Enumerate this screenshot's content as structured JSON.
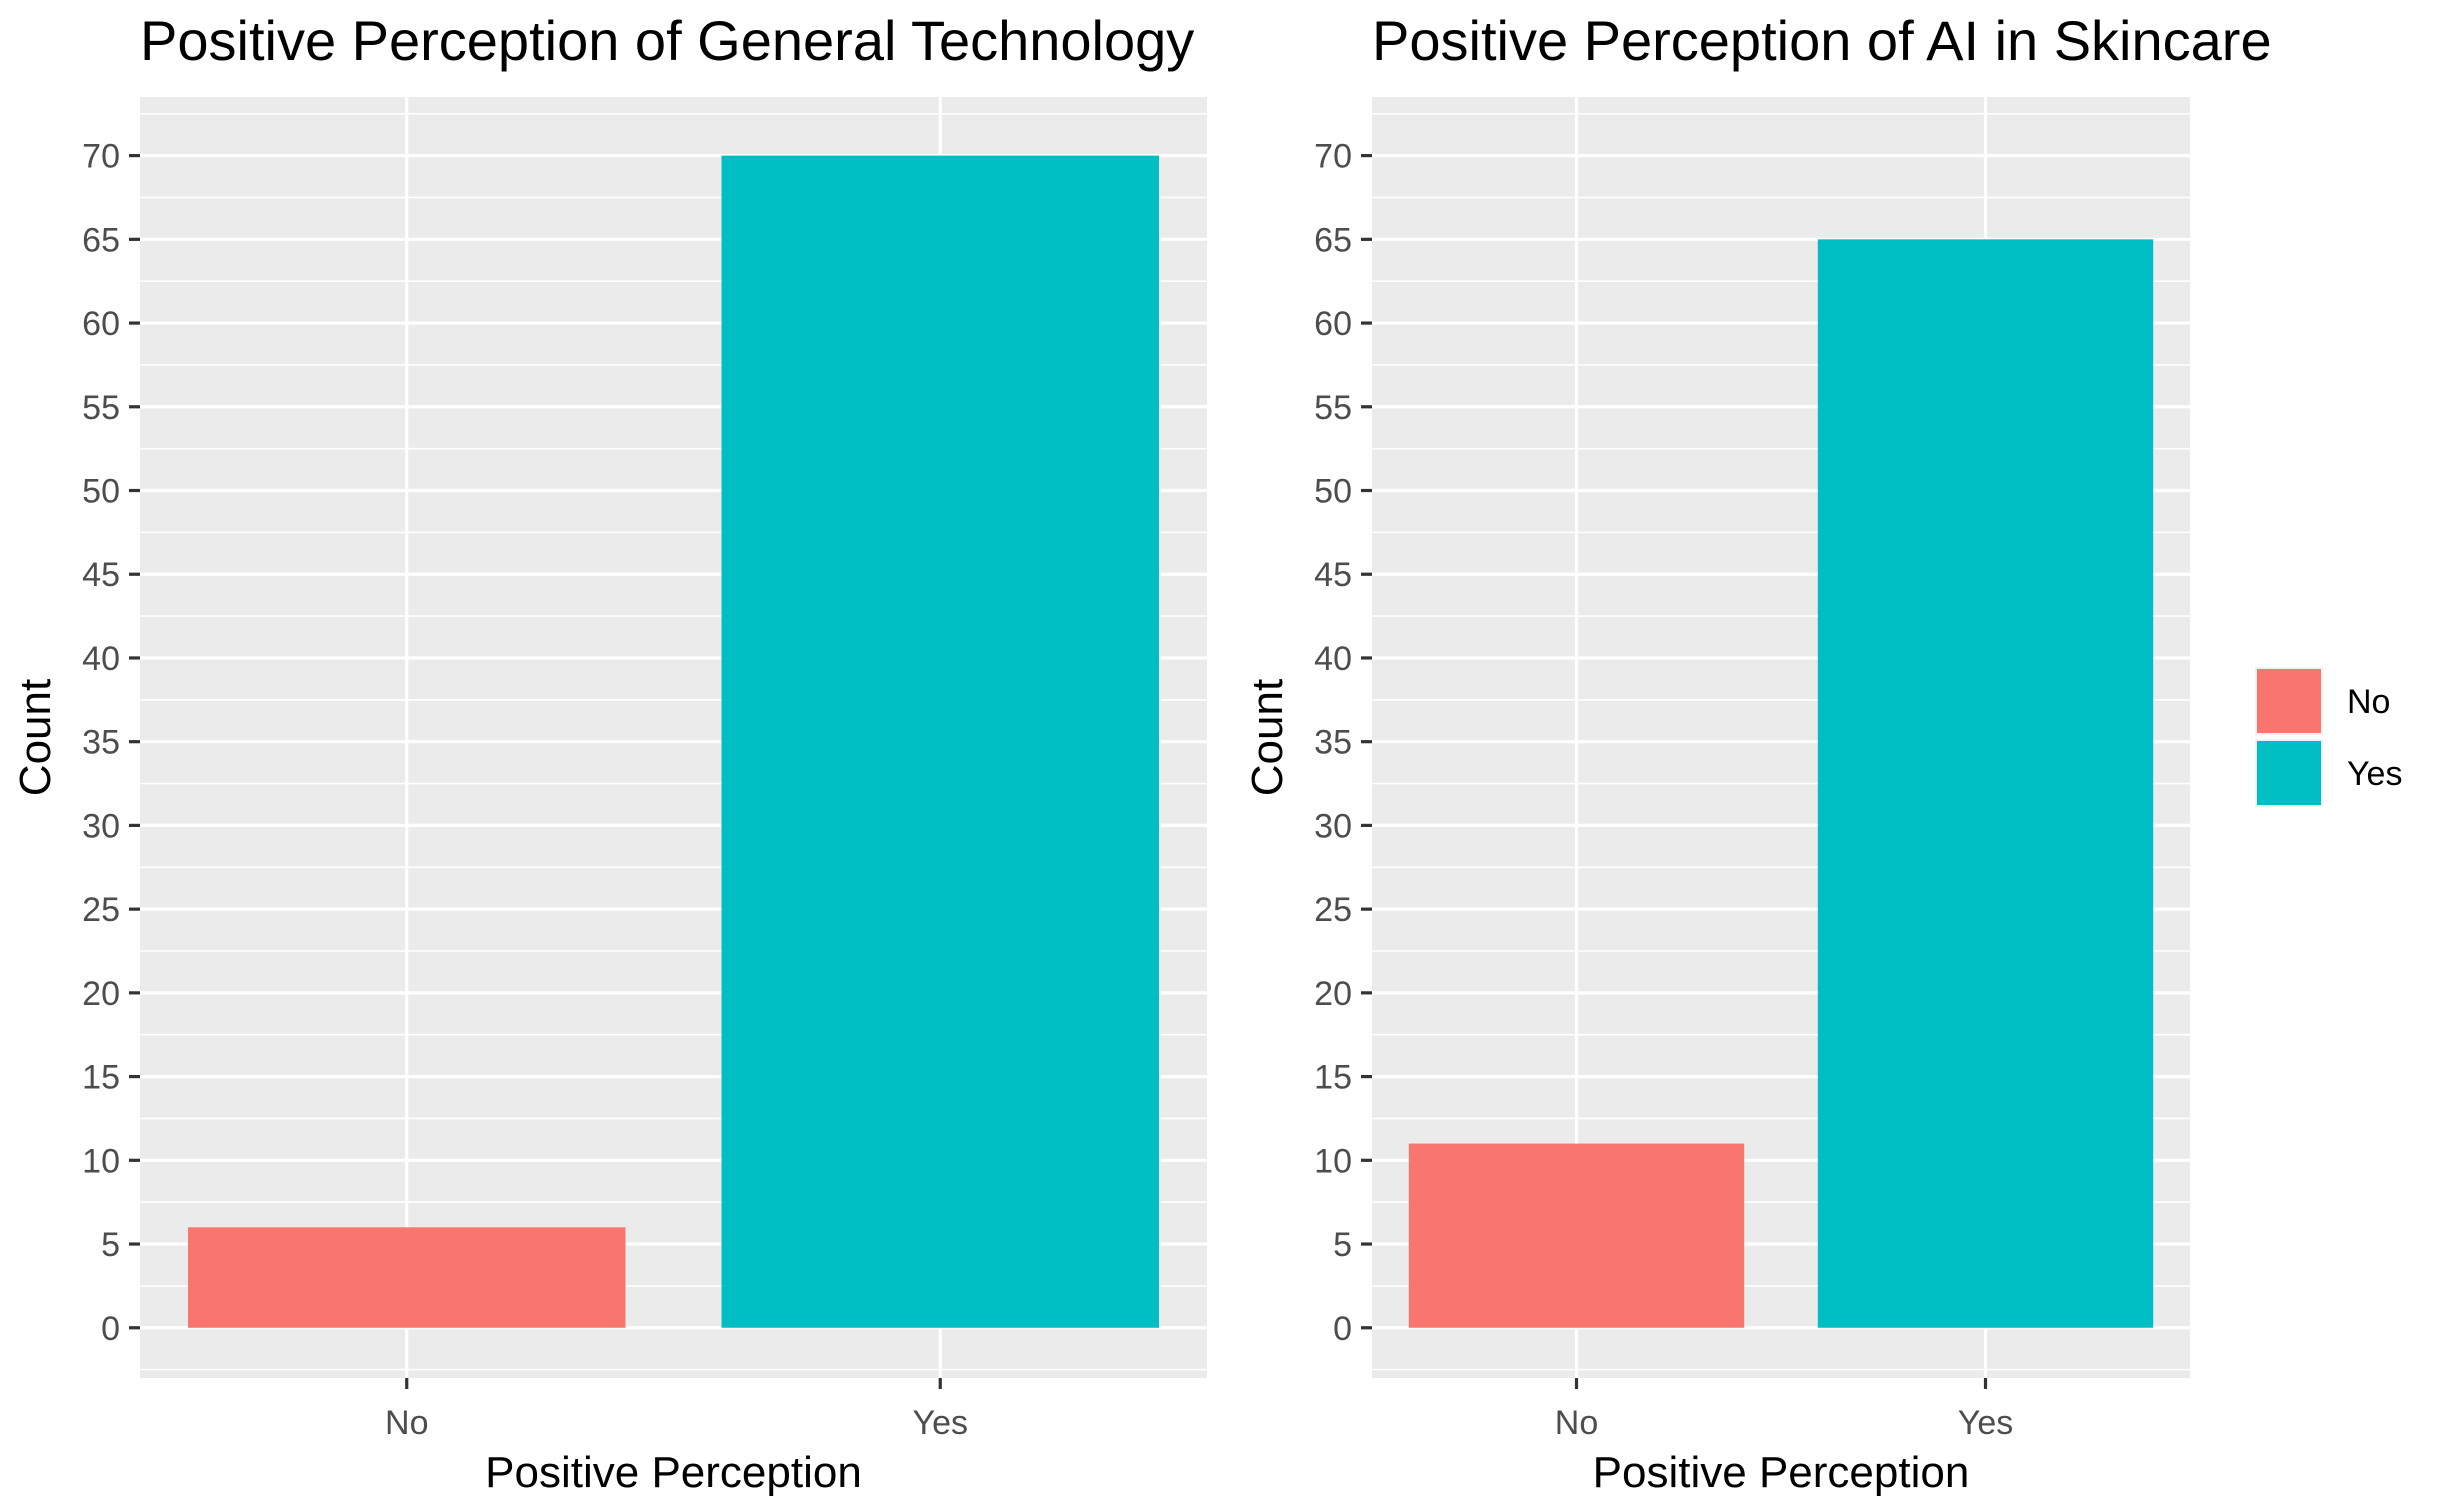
{
  "chart_data": [
    {
      "type": "bar",
      "title": "Positive Perception of General Technology",
      "xlabel": "Positive Perception",
      "ylabel": "Count",
      "categories": [
        "No",
        "Yes"
      ],
      "values": [
        6,
        70
      ],
      "ylim": [
        -3,
        73.5
      ],
      "yticks": [
        0,
        5,
        10,
        15,
        20,
        25,
        30,
        35,
        40,
        45,
        50,
        55,
        60,
        65,
        70
      ],
      "grid": true
    },
    {
      "type": "bar",
      "title": "Positive Perception of AI in Skincare",
      "xlabel": "Positive Perception",
      "ylabel": "Count",
      "categories": [
        "No",
        "Yes"
      ],
      "values": [
        11,
        65
      ],
      "ylim": [
        -3,
        73.5
      ],
      "yticks": [
        0,
        5,
        10,
        15,
        20,
        25,
        30,
        35,
        40,
        45,
        50,
        55,
        60,
        65,
        70
      ],
      "grid": true
    }
  ],
  "legend": {
    "placement": "right",
    "items": [
      {
        "label": "No",
        "color": "#F8766D"
      },
      {
        "label": "Yes",
        "color": "#00BFC4"
      }
    ]
  },
  "colors": {
    "panel_background": "#EBEBEB",
    "grid": "#FFFFFF",
    "tick": "#333333"
  }
}
